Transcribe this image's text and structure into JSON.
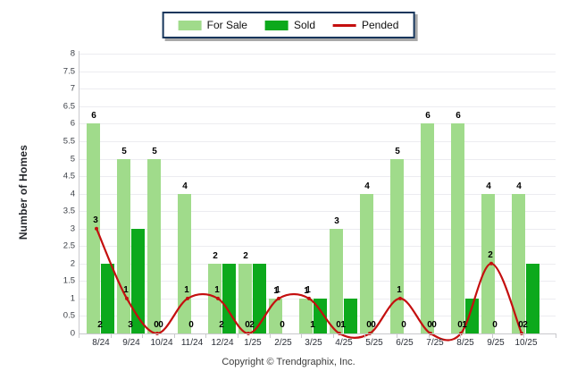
{
  "chart_data": {
    "type": "bar+line",
    "categories": [
      "8/24",
      "9/24",
      "10/24",
      "11/24",
      "12/24",
      "1/25",
      "2/25",
      "3/25",
      "4/25",
      "5/25",
      "6/25",
      "7/25",
      "8/25",
      "9/25",
      "10/25"
    ],
    "series": [
      {
        "name": "For Sale",
        "type": "bar",
        "color": "#A0DB8B",
        "values": [
          6,
          5,
          5,
          4,
          2,
          2,
          1,
          1,
          3,
          4,
          5,
          6,
          6,
          4,
          4
        ]
      },
      {
        "name": "Sold",
        "type": "bar",
        "color": "#0CA91C",
        "values": [
          2,
          3,
          0,
          0,
          2,
          2,
          0,
          1,
          1,
          0,
          0,
          0,
          1,
          0,
          2
        ]
      },
      {
        "name": "Pended",
        "type": "line",
        "color": "#C40F0F",
        "values": [
          3,
          1,
          0,
          1,
          1,
          0,
          1,
          1,
          0,
          0,
          1,
          0,
          0,
          2,
          0
        ]
      }
    ],
    "ylabel": "Number of Homes",
    "ylim": [
      0,
      8
    ],
    "ytick_step": 0.5,
    "grid": true,
    "legend_position": "top-center",
    "value_labels": true
  },
  "footer": {
    "copyright": "Copyright © Trendgraphix, Inc."
  },
  "colors": {
    "grid": "#ECECF0",
    "axis": "#C8C8CC",
    "legend_border": "#16365C",
    "value_label": "#000000"
  }
}
